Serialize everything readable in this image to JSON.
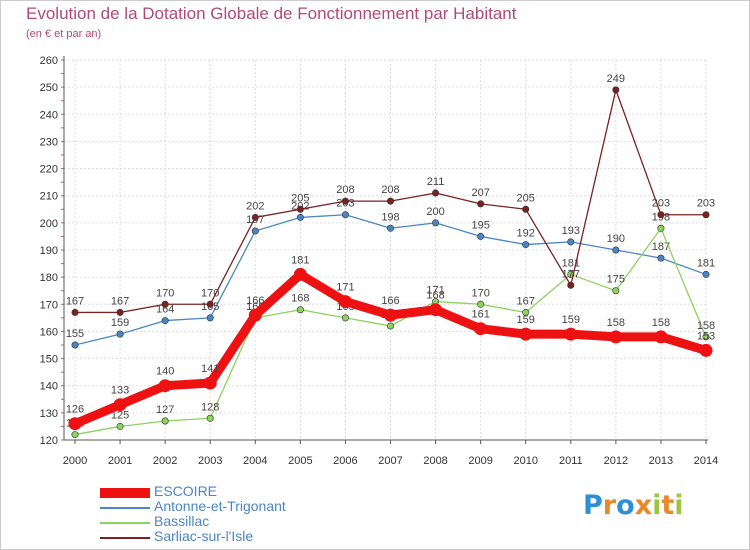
{
  "header": {
    "title": "Evolution de la Dotation Globale de Fonctionnement par Habitant",
    "subtitle": "(en € et par an)"
  },
  "brand": {
    "logo_letters": [
      "P",
      "r",
      "o",
      "x",
      "i",
      "t",
      "i"
    ],
    "logo_colors": [
      "#2e8fd6",
      "#e8892b",
      "#2e8fd6",
      "#e8892b",
      "#9bc63f",
      "#e8892b",
      "#9bc63f"
    ]
  },
  "chart_data": {
    "type": "line",
    "title": "Evolution de la Dotation Globale de Fonctionnement par Habitant",
    "subtitle": "(en € et par an)",
    "xlabel": "",
    "ylabel": "",
    "ylim": [
      120,
      260
    ],
    "ytick_step": 10,
    "grid": true,
    "legend_position": "bottom-left",
    "x": [
      "2000",
      "2001",
      "2002",
      "2003",
      "2004",
      "2005",
      "2006",
      "2007",
      "2008",
      "2009",
      "2010",
      "2011",
      "2012",
      "2013",
      "2014"
    ],
    "yticks": [
      "120",
      "130",
      "140",
      "150",
      "160",
      "170",
      "180",
      "190",
      "200",
      "210",
      "220",
      "230",
      "240",
      "250",
      "260"
    ],
    "series": [
      {
        "name": "ESCOIRE",
        "color": "#ee1111",
        "emphasis": true,
        "values": [
          126,
          133,
          140,
          141,
          166,
          181,
          171,
          166,
          168,
          161,
          159,
          159,
          158,
          158,
          153
        ],
        "labels": [
          "126",
          "133",
          "140",
          "141",
          "166",
          "181",
          "171",
          "166",
          "168",
          "161",
          "159",
          "159",
          "158",
          "158",
          "153"
        ]
      },
      {
        "name": "Antonne-et-Trigonant",
        "color": "#4b86c4",
        "emphasis": false,
        "values": [
          155,
          159,
          164,
          165,
          197,
          202,
          203,
          198,
          200,
          195,
          192,
          193,
          190,
          187,
          181
        ],
        "labels": [
          "155",
          "159",
          "164",
          "165",
          "197",
          "202",
          "203",
          "198",
          "200",
          "195",
          "192",
          "193",
          "190",
          "187",
          "181"
        ]
      },
      {
        "name": "Bassillac",
        "color": "#8cd25e",
        "emphasis": false,
        "values": [
          122,
          125,
          127,
          128,
          165,
          168,
          165,
          162,
          171,
          170,
          167,
          181,
          175,
          198,
          158
        ],
        "labels": [
          "122",
          "125",
          "127",
          "128",
          "165",
          "168",
          "165",
          "162",
          "171",
          "170",
          "167",
          "181",
          "175",
          "198",
          "158"
        ]
      },
      {
        "name": "Sarliac-sur-l'Isle",
        "color": "#7a2222",
        "emphasis": false,
        "values": [
          167,
          167,
          170,
          170,
          202,
          205,
          208,
          208,
          211,
          207,
          205,
          177,
          249,
          203,
          203
        ],
        "labels": [
          "167",
          "167",
          "170",
          "170",
          "202",
          "205",
          "208",
          "208",
          "211",
          "207",
          "205",
          "177",
          "249",
          "203",
          "203"
        ]
      }
    ]
  }
}
